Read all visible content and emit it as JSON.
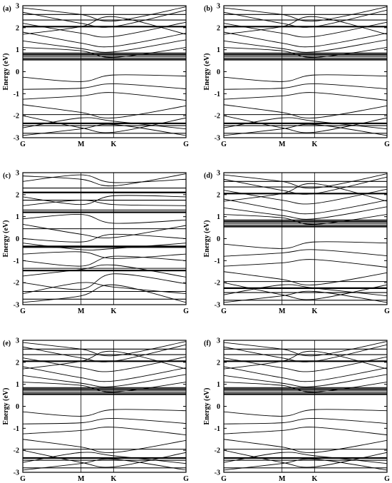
{
  "chart_data": [
    {
      "panel_label": "(a)",
      "type": "line",
      "ylabel": "Energy (eV)",
      "ylim": [
        -3,
        3
      ],
      "yticks": [
        "-3",
        "-2",
        "-1",
        "0",
        "1",
        "2",
        "3"
      ],
      "kpath": [
        "G",
        "M",
        "K",
        "G"
      ],
      "kpath_positions": [
        0,
        0.3567,
        0.5561,
        1.0
      ],
      "flat_bands": [
        0.55,
        0.62,
        0.7,
        0.78,
        0.85,
        -1.95,
        -2.35,
        -2.45,
        -2.8,
        2.05,
        2.35,
        2.6
      ],
      "dispersive_bands": [
        [
          -0.25,
          -0.45,
          -0.15,
          -0.2
        ],
        [
          -0.8,
          -0.75,
          -0.55,
          -0.78
        ],
        [
          -1.25,
          -1.1,
          -0.95,
          -1.3
        ],
        [
          1.4,
          1.05,
          0.9,
          1.45
        ],
        [
          1.8,
          1.3,
          1.15,
          1.75
        ],
        [
          2.2,
          1.75,
          1.6,
          2.25
        ],
        [
          2.7,
          2.2,
          2.05,
          2.8
        ],
        [
          -1.5,
          -1.85,
          -2.1,
          -1.55
        ],
        [
          -2.0,
          -2.55,
          -2.75,
          -2.1
        ],
        [
          -2.55,
          -2.1,
          -2.25,
          -2.6
        ],
        [
          1.1,
          0.95,
          0.65,
          1.1
        ],
        [
          1.7,
          2.05,
          2.5,
          1.7
        ],
        [
          2.9,
          2.6,
          2.3,
          2.95
        ],
        [
          -2.9,
          -2.6,
          -2.4,
          -2.9
        ]
      ]
    },
    {
      "panel_label": "(b)",
      "type": "line",
      "ylabel": "Energy (eV)",
      "ylim": [
        -3,
        3
      ],
      "yticks": [
        "-3",
        "-2",
        "-1",
        "0",
        "1",
        "2",
        "3"
      ],
      "kpath": [
        "G",
        "M",
        "K",
        "G"
      ],
      "kpath_positions": [
        0,
        0.3567,
        0.5561,
        1.0
      ],
      "flat_bands": [
        0.55,
        0.62,
        0.7,
        0.78,
        0.85,
        -1.95,
        -2.35,
        -2.45,
        -2.8,
        2.05,
        2.35,
        2.6
      ],
      "dispersive_bands": [
        [
          -0.25,
          -0.45,
          -0.15,
          -0.2
        ],
        [
          -0.8,
          -0.75,
          -0.55,
          -0.78
        ],
        [
          -1.25,
          -1.1,
          -0.95,
          -1.3
        ],
        [
          1.4,
          1.05,
          0.9,
          1.45
        ],
        [
          1.8,
          1.3,
          1.15,
          1.75
        ],
        [
          2.2,
          1.75,
          1.6,
          2.25
        ],
        [
          2.7,
          2.2,
          2.05,
          2.8
        ],
        [
          -1.5,
          -1.85,
          -2.1,
          -1.55
        ],
        [
          -2.0,
          -2.55,
          -2.75,
          -2.1
        ],
        [
          -2.55,
          -2.1,
          -2.25,
          -2.6
        ],
        [
          1.1,
          0.95,
          0.65,
          1.1
        ],
        [
          1.7,
          2.05,
          2.5,
          1.7
        ],
        [
          2.9,
          2.6,
          2.3,
          2.95
        ],
        [
          -2.9,
          -2.6,
          -2.4,
          -2.9
        ]
      ]
    },
    {
      "panel_label": "(c)",
      "type": "line",
      "ylabel": "Energy (eV)",
      "ylim": [
        -3,
        3
      ],
      "yticks": [
        "-3",
        "-2",
        "-1",
        "0",
        "1",
        "2",
        "3"
      ],
      "kpath": [
        "G",
        "M",
        "K",
        "G"
      ],
      "kpath_positions": [
        0,
        0.3567,
        0.5561,
        1.0
      ],
      "flat_bands": [
        1.2,
        1.3,
        1.75,
        -0.35,
        -0.4,
        -1.35,
        -1.45,
        -2.4,
        -2.75,
        2.1,
        2.3,
        0.45
      ],
      "dispersive_bands": [
        [
          0.65,
          0.2,
          0.05,
          0.6
        ],
        [
          0.0,
          -0.15,
          0.2,
          0.0
        ],
        [
          -0.7,
          -0.6,
          -0.9,
          -0.7
        ],
        [
          -1.0,
          -1.25,
          -0.8,
          -1.0
        ],
        [
          -1.7,
          -1.4,
          -1.2,
          -1.75
        ],
        [
          -2.0,
          -2.3,
          -1.6,
          -2.05
        ],
        [
          -2.5,
          -2.0,
          -2.2,
          -2.5
        ],
        [
          -2.9,
          -2.6,
          -2.1,
          -2.9
        ],
        [
          1.5,
          1.75,
          1.55,
          1.5
        ],
        [
          0.9,
          1.1,
          0.7,
          0.85
        ],
        [
          2.6,
          2.9,
          2.55,
          2.7
        ],
        [
          2.85,
          2.7,
          2.4,
          2.95
        ],
        [
          1.9,
          1.55,
          1.95,
          1.9
        ],
        [
          -0.2,
          -0.5,
          -0.45,
          -0.2
        ]
      ]
    },
    {
      "panel_label": "(d)",
      "type": "line",
      "ylabel": "Energy (eV)",
      "ylim": [
        -3,
        3
      ],
      "yticks": [
        "-3",
        "-2",
        "-1",
        "0",
        "1",
        "2",
        "3"
      ],
      "kpath": [
        "G",
        "M",
        "K",
        "G"
      ],
      "kpath_positions": [
        0,
        0.3567,
        0.5561,
        1.0
      ],
      "flat_bands": [
        0.55,
        0.62,
        0.7,
        0.78,
        0.85,
        -1.95,
        -2.25,
        -2.45,
        -2.8,
        2.05,
        2.35,
        2.6
      ],
      "dispersive_bands": [
        [
          -0.25,
          -0.45,
          -0.15,
          -0.2
        ],
        [
          -0.8,
          -0.65,
          -0.5,
          -0.78
        ],
        [
          -1.25,
          -1.1,
          -0.95,
          -1.3
        ],
        [
          1.4,
          1.05,
          0.9,
          1.45
        ],
        [
          1.8,
          1.3,
          1.15,
          1.75
        ],
        [
          2.2,
          1.75,
          1.6,
          2.25
        ],
        [
          2.7,
          2.2,
          2.05,
          2.8
        ],
        [
          -1.5,
          -1.85,
          -2.1,
          -1.55
        ],
        [
          -2.0,
          -2.55,
          -2.75,
          -2.1
        ],
        [
          -2.55,
          -2.1,
          -2.25,
          -2.6
        ],
        [
          1.1,
          0.95,
          0.65,
          1.1
        ],
        [
          1.7,
          2.05,
          2.5,
          1.7
        ],
        [
          2.9,
          2.6,
          2.3,
          2.95
        ],
        [
          -2.9,
          -2.6,
          -2.4,
          -2.9
        ]
      ]
    },
    {
      "panel_label": "(e)",
      "type": "line",
      "ylabel": "Energy (eV)",
      "ylim": [
        -3,
        3
      ],
      "yticks": [
        "-3",
        "-2",
        "-1",
        "0",
        "1",
        "2",
        "3"
      ],
      "kpath": [
        "G",
        "M",
        "K",
        "G"
      ],
      "kpath_positions": [
        0,
        0.3567,
        0.5561,
        1.0
      ],
      "flat_bands": [
        0.55,
        0.62,
        0.7,
        0.78,
        0.85,
        -1.95,
        -2.35,
        -2.45,
        -2.8,
        2.05,
        2.35,
        2.6
      ],
      "dispersive_bands": [
        [
          -0.25,
          -0.45,
          -0.15,
          -0.2
        ],
        [
          -0.8,
          -0.75,
          -0.55,
          -0.78
        ],
        [
          -1.25,
          -1.1,
          -0.95,
          -1.3
        ],
        [
          1.4,
          1.05,
          0.9,
          1.45
        ],
        [
          1.8,
          1.3,
          1.15,
          1.75
        ],
        [
          2.2,
          1.75,
          1.6,
          2.25
        ],
        [
          2.7,
          2.2,
          2.05,
          2.8
        ],
        [
          -1.5,
          -1.85,
          -2.1,
          -1.55
        ],
        [
          -2.0,
          -2.55,
          -2.75,
          -2.1
        ],
        [
          -2.55,
          -2.1,
          -2.25,
          -2.6
        ],
        [
          1.1,
          0.95,
          0.65,
          1.1
        ],
        [
          1.7,
          2.05,
          2.5,
          1.7
        ],
        [
          2.9,
          2.6,
          2.3,
          2.95
        ],
        [
          -2.9,
          -2.6,
          -2.4,
          -2.9
        ]
      ]
    },
    {
      "panel_label": "(f)",
      "type": "line",
      "ylabel": "Energy (eV)",
      "ylim": [
        -3,
        3
      ],
      "yticks": [
        "-3",
        "-2",
        "-1",
        "0",
        "1",
        "2",
        "3"
      ],
      "kpath": [
        "G",
        "M",
        "K",
        "G"
      ],
      "kpath_positions": [
        0,
        0.3567,
        0.5561,
        1.0
      ],
      "flat_bands": [
        0.55,
        0.62,
        0.7,
        0.78,
        0.85,
        -1.95,
        -2.35,
        -2.45,
        -2.8,
        2.05,
        2.35,
        2.6
      ],
      "dispersive_bands": [
        [
          -0.25,
          -0.45,
          -0.15,
          -0.2
        ],
        [
          -0.8,
          -0.75,
          -0.55,
          -0.78
        ],
        [
          -1.25,
          -1.1,
          -0.95,
          -1.3
        ],
        [
          1.4,
          1.05,
          0.9,
          1.45
        ],
        [
          1.8,
          1.3,
          1.15,
          1.75
        ],
        [
          2.2,
          1.75,
          1.6,
          2.25
        ],
        [
          2.7,
          2.2,
          2.05,
          2.8
        ],
        [
          -1.5,
          -1.85,
          -2.1,
          -1.55
        ],
        [
          -2.0,
          -2.55,
          -2.75,
          -2.1
        ],
        [
          -2.55,
          -2.1,
          -2.25,
          -2.6
        ],
        [
          1.1,
          0.95,
          0.65,
          1.1
        ],
        [
          1.7,
          2.05,
          2.5,
          1.7
        ],
        [
          2.9,
          2.6,
          2.3,
          2.95
        ],
        [
          -2.9,
          -2.6,
          -2.4,
          -2.9
        ]
      ]
    }
  ]
}
